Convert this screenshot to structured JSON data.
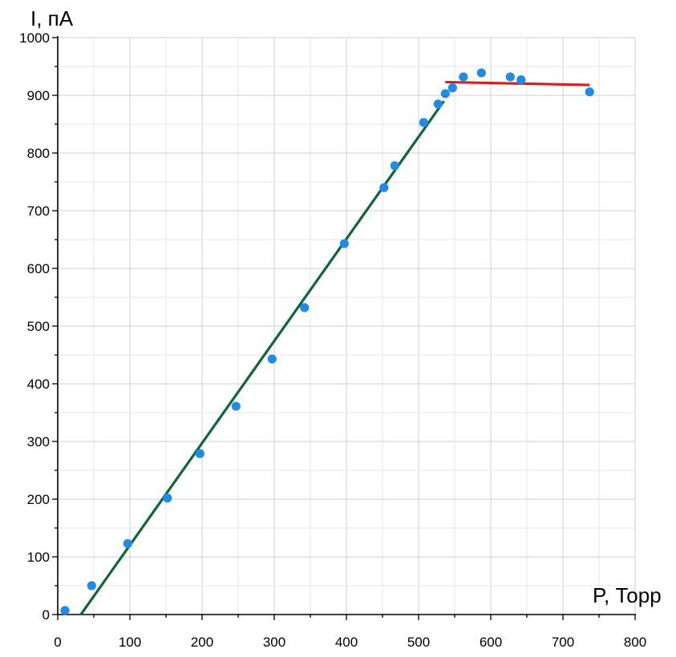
{
  "chart_data": {
    "type": "scatter",
    "xlabel": "P, Торр",
    "ylabel": "I, пА",
    "xlim": [
      0,
      800
    ],
    "ylim": [
      0,
      1000
    ],
    "xticks": [
      0,
      100,
      200,
      300,
      400,
      500,
      600,
      700,
      800
    ],
    "yticks": [
      0,
      100,
      200,
      300,
      400,
      500,
      600,
      700,
      800,
      900,
      1000
    ],
    "grid": true,
    "series": [
      {
        "kind": "points",
        "color": "#1e8ce6",
        "x": [
          10,
          47,
          97,
          152,
          197,
          247,
          297,
          342,
          397,
          452,
          467,
          507,
          527,
          537,
          547,
          562,
          587,
          627,
          642,
          737
        ],
        "y": [
          7,
          50,
          123,
          202,
          279,
          361,
          443,
          532,
          643,
          740,
          778,
          853,
          885,
          903,
          913,
          932,
          939,
          932,
          927,
          906
        ]
      },
      {
        "kind": "line",
        "color": "#0f6536",
        "x": [
          32,
          535
        ],
        "y": [
          0,
          890
        ]
      },
      {
        "kind": "line",
        "color": "#dd1d1d",
        "x": [
          537,
          737
        ],
        "y": [
          923,
          918
        ]
      }
    ]
  }
}
